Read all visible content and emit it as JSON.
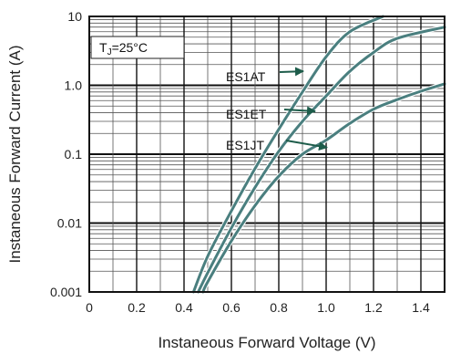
{
  "chart_data": {
    "type": "line",
    "title": "",
    "xlabel": "Instaneous Forward Voltage (V)",
    "ylabel": "Instaneous Forward Current (A)",
    "xlim": [
      0,
      1.5
    ],
    "ylim": [
      0.001,
      10
    ],
    "yscale": "log",
    "grid": true,
    "x_ticks": [
      "0",
      "0.2",
      "0.4",
      "0.6",
      "0.8",
      "1.0",
      "1.2",
      "1.4"
    ],
    "x_tick_values": [
      0,
      0.2,
      0.4,
      0.6,
      0.8,
      1.0,
      1.2,
      1.4
    ],
    "y_ticks": [
      "0.001",
      "0.01",
      "0.1",
      "1.0",
      "10"
    ],
    "y_tick_values": [
      0.001,
      0.01,
      0.1,
      1,
      10
    ],
    "condition_label": {
      "prefix": "T",
      "subscript": "J",
      "suffix": "=25°C"
    },
    "series": [
      {
        "name": "ES1AT",
        "color": "#4a7f7f",
        "points": [
          [
            0.44,
            0.001
          ],
          [
            0.5,
            0.0033
          ],
          [
            0.6,
            0.015
          ],
          [
            0.7,
            0.062
          ],
          [
            0.8,
            0.23
          ],
          [
            0.9,
            0.8
          ],
          [
            1.0,
            2.6
          ],
          [
            1.1,
            6.0
          ],
          [
            1.24,
            10
          ]
        ]
      },
      {
        "name": "ES1ET",
        "color": "#4a7f7f",
        "points": [
          [
            0.46,
            0.001
          ],
          [
            0.5,
            0.0019
          ],
          [
            0.6,
            0.0085
          ],
          [
            0.7,
            0.033
          ],
          [
            0.8,
            0.11
          ],
          [
            0.9,
            0.3
          ],
          [
            1.0,
            0.7
          ],
          [
            1.1,
            1.6
          ],
          [
            1.2,
            3.0
          ],
          [
            1.3,
            4.8
          ],
          [
            1.5,
            7.0
          ]
        ]
      },
      {
        "name": "ES1JT",
        "color": "#4a7f7f",
        "points": [
          [
            0.48,
            0.001
          ],
          [
            0.5,
            0.0014
          ],
          [
            0.6,
            0.0055
          ],
          [
            0.7,
            0.018
          ],
          [
            0.8,
            0.048
          ],
          [
            0.9,
            0.1
          ],
          [
            1.0,
            0.16
          ],
          [
            1.1,
            0.28
          ],
          [
            1.2,
            0.45
          ],
          [
            1.3,
            0.62
          ],
          [
            1.4,
            0.82
          ],
          [
            1.5,
            1.05
          ]
        ]
      }
    ],
    "annotations": [
      {
        "label": "ES1AT",
        "arrow_to": [
          0.95,
          1.6
        ]
      },
      {
        "label": "ES1ET",
        "arrow_to": [
          1.0,
          0.42
        ]
      },
      {
        "label": "ES1JT",
        "arrow_to": [
          1.05,
          0.125
        ]
      }
    ]
  }
}
